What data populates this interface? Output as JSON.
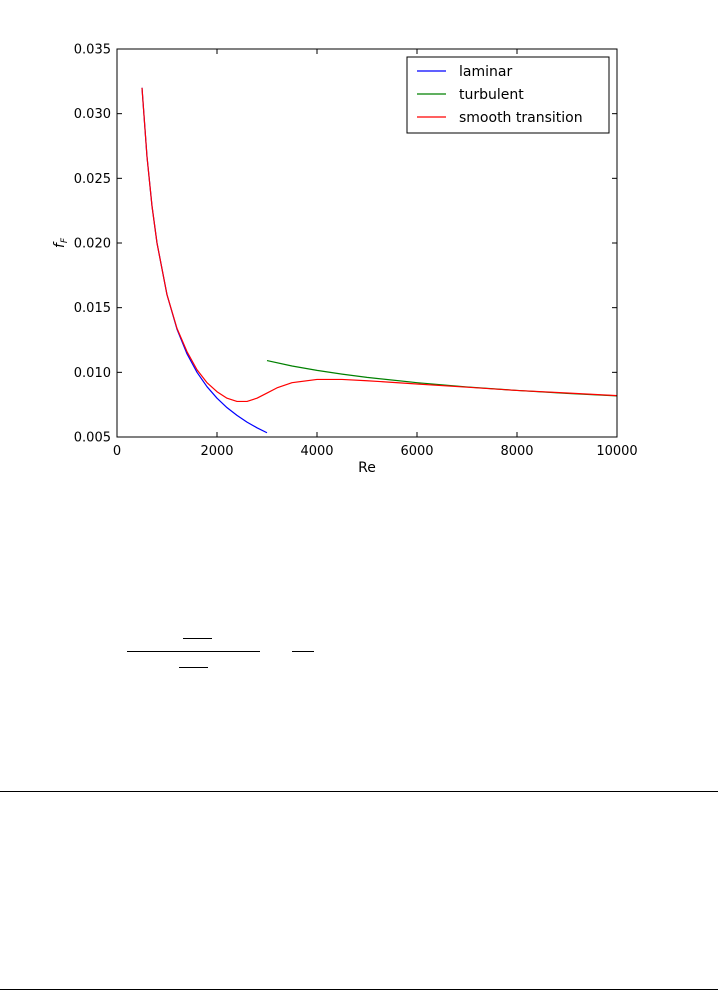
{
  "chart_data": {
    "type": "line",
    "xlabel": "Re",
    "ylabel": "f_F",
    "xlim": [
      0,
      10000
    ],
    "ylim": [
      0.005,
      0.035
    ],
    "xticks": [
      0,
      2000,
      4000,
      6000,
      8000,
      10000
    ],
    "xtick_labels": [
      "0",
      "2000",
      "4000",
      "6000",
      "8000",
      "10000"
    ],
    "yticks": [
      0.005,
      0.01,
      0.015,
      0.02,
      0.025,
      0.03,
      0.035
    ],
    "ytick_labels": [
      "0.005",
      "0.010",
      "0.015",
      "0.020",
      "0.025",
      "0.030",
      "0.035"
    ],
    "grid": false,
    "legend_position": "top-right",
    "series": [
      {
        "name": "laminar",
        "color": "#0000ff",
        "x": [
          500,
          600,
          700,
          800,
          1000,
          1200,
          1400,
          1600,
          1800,
          2000,
          2200,
          2400,
          2600,
          2800,
          3000
        ],
        "y": [
          0.032,
          0.02667,
          0.02286,
          0.02,
          0.016,
          0.01333,
          0.01143,
          0.01,
          0.00889,
          0.008,
          0.00727,
          0.00667,
          0.00615,
          0.00571,
          0.00533
        ]
      },
      {
        "name": "turbulent",
        "color": "#008000",
        "x": [
          3000,
          3500,
          4000,
          4500,
          5000,
          6000,
          7000,
          8000,
          9000,
          10000
        ],
        "y": [
          0.01091,
          0.01049,
          0.01015,
          0.00986,
          0.00961,
          0.0092,
          0.00887,
          0.0086,
          0.00837,
          0.00818
        ]
      },
      {
        "name": "smooth transition",
        "color": "#ff0000",
        "x": [
          500,
          600,
          700,
          800,
          1000,
          1200,
          1400,
          1600,
          1800,
          2000,
          2200,
          2400,
          2600,
          2800,
          3000,
          3200,
          3500,
          4000,
          4500,
          5000,
          6000,
          7000,
          8000,
          9000,
          10000
        ],
        "y": [
          0.032,
          0.02667,
          0.02286,
          0.02,
          0.016,
          0.0134,
          0.0116,
          0.0102,
          0.0092,
          0.0085,
          0.008,
          0.00775,
          0.00775,
          0.008,
          0.0084,
          0.0088,
          0.0092,
          0.00945,
          0.00945,
          0.00935,
          0.0091,
          0.00885,
          0.0086,
          0.0084,
          0.0082
        ]
      }
    ]
  }
}
